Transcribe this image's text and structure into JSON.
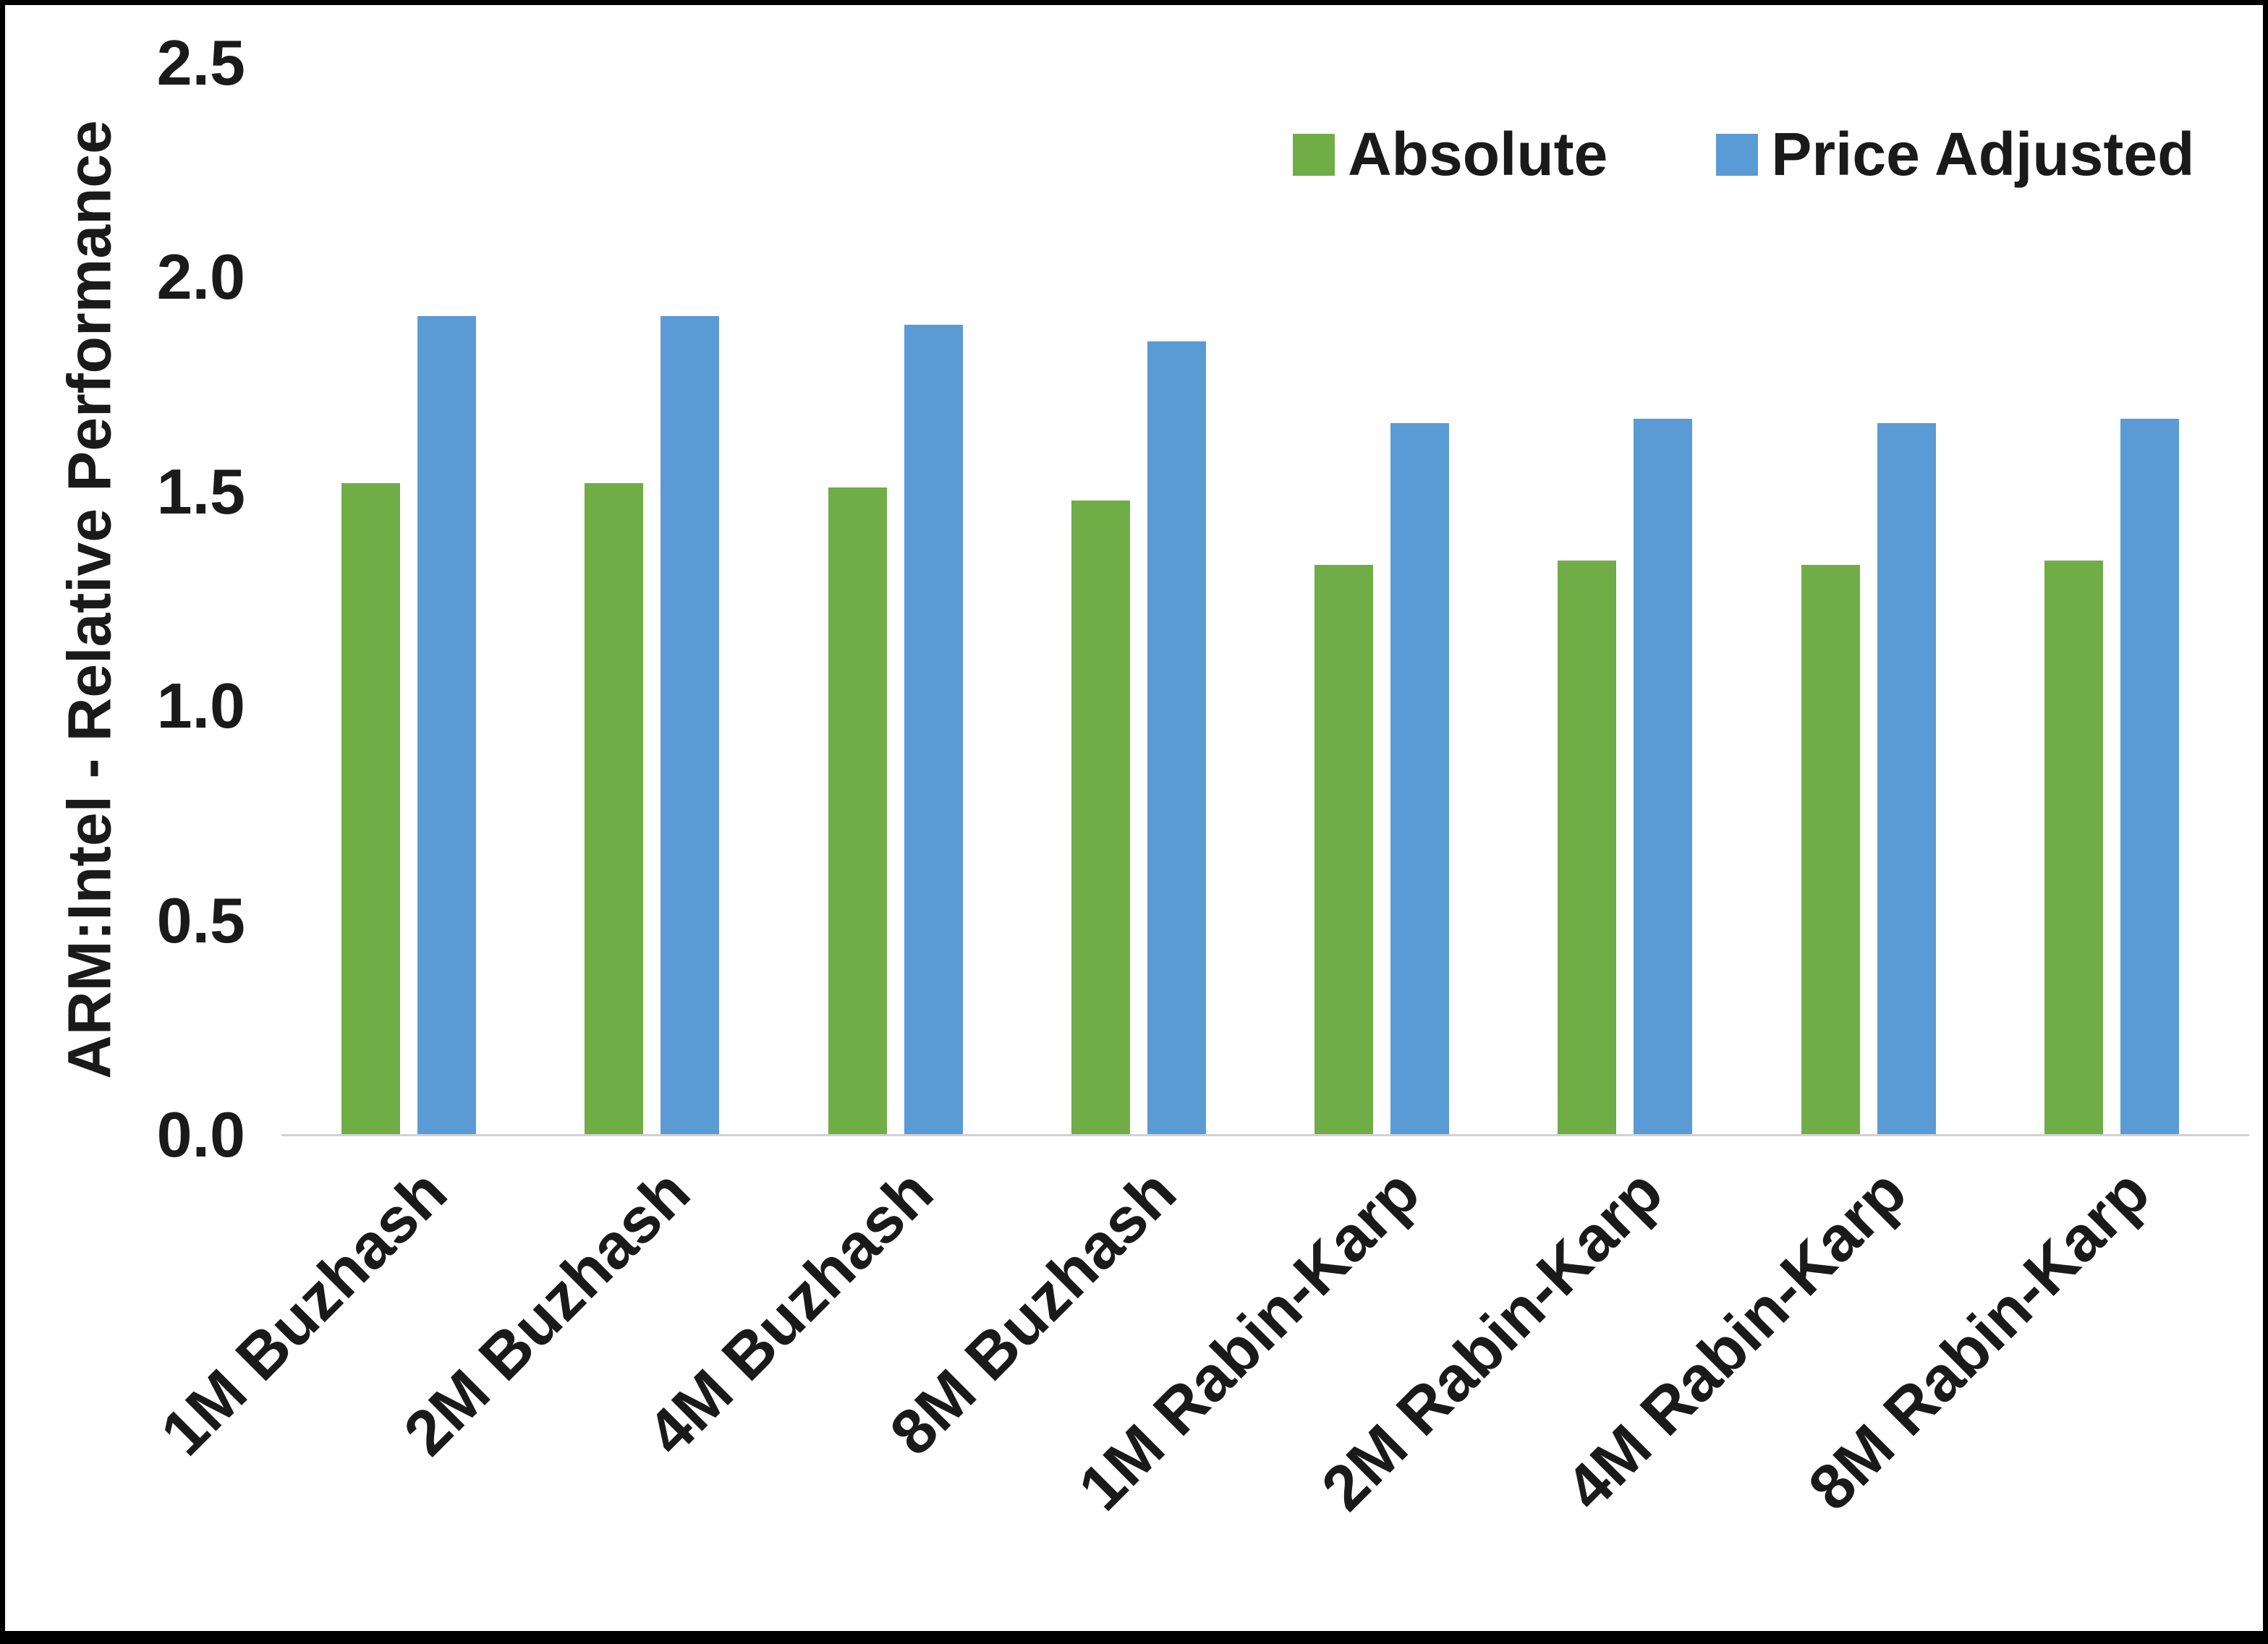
{
  "chart_data": {
    "type": "bar",
    "title": "",
    "xlabel": "",
    "ylabel": "ARM:Intel - Relative Performance",
    "ylim": [
      0,
      2.5
    ],
    "yticks": [
      "0.0",
      "0.5",
      "1.0",
      "1.5",
      "2.0",
      "2.5"
    ],
    "grid": false,
    "legend_position": "top-right",
    "categories": [
      "1M Buzhash",
      "2M Buzhash",
      "4M Buzhash",
      "8M Buzhash",
      "1M Rabin-Karp",
      "2M Rabin-Karp",
      "4M Rabin-Karp",
      "8M Rabin-Karp"
    ],
    "series": [
      {
        "name": "Absolute",
        "color": "#70AD47",
        "values": [
          1.52,
          1.52,
          1.51,
          1.48,
          1.33,
          1.34,
          1.33,
          1.34
        ]
      },
      {
        "name": "Price Adjusted",
        "color": "#5B9BD5",
        "values": [
          1.91,
          1.91,
          1.89,
          1.85,
          1.66,
          1.67,
          1.66,
          1.67
        ]
      }
    ]
  }
}
